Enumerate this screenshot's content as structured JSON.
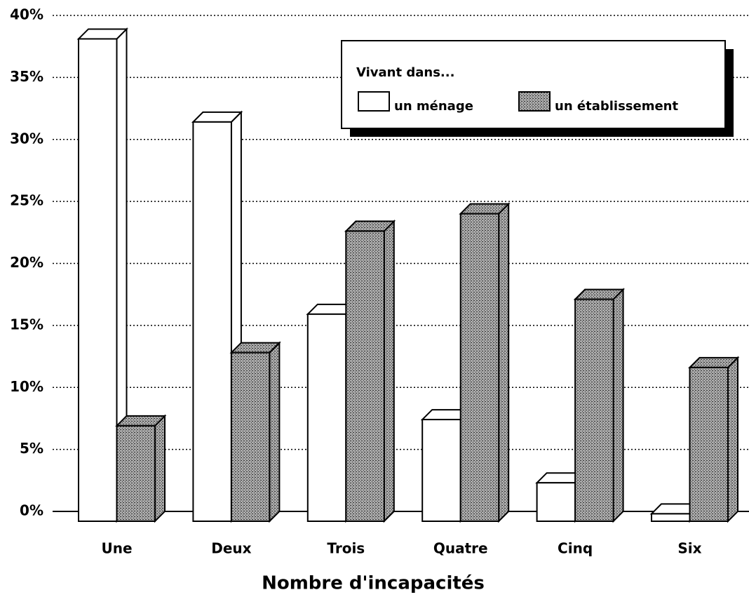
{
  "chart_data": {
    "type": "bar3d",
    "x_label": "Nombre d'incapacités",
    "legend_title": "Vivant dans...",
    "categories": [
      "Une",
      "Deux",
      "Trois",
      "Quatre",
      "Cinq",
      "Six"
    ],
    "series": [
      {
        "name": "un ménage",
        "color": "#ffffff",
        "values": [
          38.9,
          32.2,
          16.7,
          8.2,
          3.1,
          0.6
        ]
      },
      {
        "name": "un établissement",
        "color": "#a9a9a9",
        "values": [
          7.7,
          13.6,
          23.4,
          24.8,
          17.9,
          12.4
        ]
      }
    ],
    "ylim": [
      0,
      40
    ],
    "yticks": [
      {
        "value": 0,
        "label": "0%"
      },
      {
        "value": 5,
        "label": "5%"
      },
      {
        "value": 10,
        "label": "10%"
      },
      {
        "value": 15,
        "label": "15%"
      },
      {
        "value": 20,
        "label": "20%"
      },
      {
        "value": 25,
        "label": "25%"
      },
      {
        "value": 30,
        "label": "30%"
      },
      {
        "value": 35,
        "label": "35%"
      },
      {
        "value": 40,
        "label": "40%"
      }
    ],
    "grid": true
  }
}
